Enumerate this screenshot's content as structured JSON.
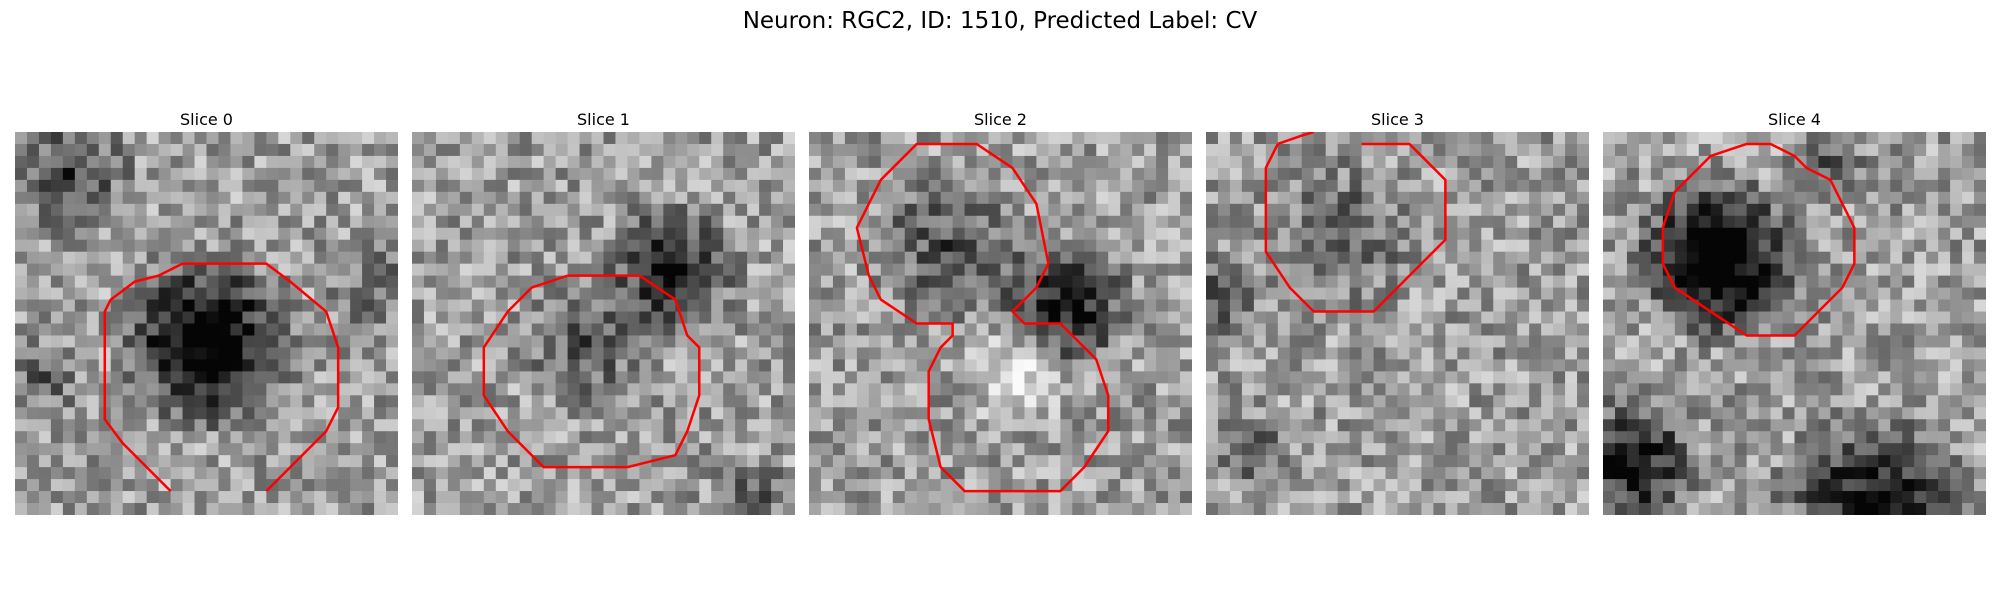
{
  "figure": {
    "title": "Neuron: RGC2, ID: 1510, Predicted Label: CV",
    "contour_color": "#ff0000"
  },
  "panels": [
    {
      "title": "Slice 0"
    },
    {
      "title": "Slice 1"
    },
    {
      "title": "Slice 2"
    },
    {
      "title": "Slice 3"
    },
    {
      "title": "Slice 4"
    }
  ]
}
